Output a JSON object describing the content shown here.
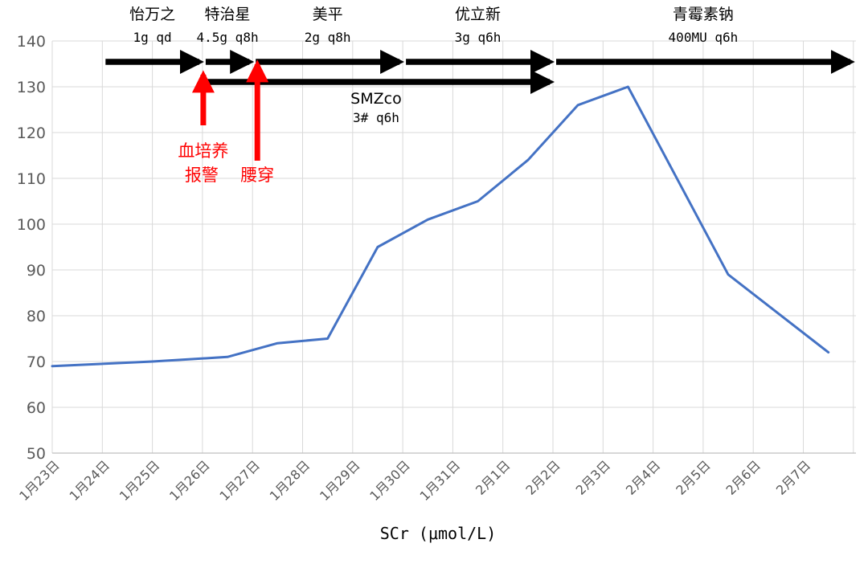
{
  "chart_data": {
    "type": "line",
    "xlabel": "SCr (μmol/L)",
    "ylim": [
      50,
      140
    ],
    "yticks": [
      50,
      60,
      70,
      80,
      90,
      100,
      110,
      120,
      130,
      140
    ],
    "categories": [
      "1月23日",
      "1月24日",
      "1月25日",
      "1月26日",
      "1月27日",
      "1月28日",
      "1月29日",
      "1月30日",
      "1月31日",
      "2月1日",
      "2月2日",
      "2月3日",
      "2月4日",
      "2月5日",
      "2月6日",
      "2月7日"
    ],
    "grid": "vertical and horizontal",
    "series": [
      {
        "color": "#4472c4",
        "points": [
          {
            "x": "1月23日",
            "y": 69
          },
          {
            "x": "1月25日",
            "y": 70
          },
          {
            "x": "1月26日 12:00",
            "y": 71
          },
          {
            "x": "1月27日 12:00",
            "y": 74
          },
          {
            "x": "1月28日 12:00",
            "y": 75
          },
          {
            "x": "1月29日 12:00",
            "y": 95
          },
          {
            "x": "1月30日 12:00",
            "y": 101
          },
          {
            "x": "1月31日 12:00",
            "y": 105
          },
          {
            "x": "2月1日 12:00",
            "y": 114
          },
          {
            "x": "2月2日 12:00",
            "y": 126
          },
          {
            "x": "2月3日 12:00",
            "y": 130
          },
          {
            "x": "2月5日 12:00",
            "y": 89
          },
          {
            "x": "2月7日 12:00",
            "y": 72
          }
        ]
      }
    ],
    "medications": [
      {
        "name": "怡万之",
        "dose": "1g qd",
        "start": "1月24日",
        "end": "1月26日"
      },
      {
        "name": "特治星",
        "dose": "4.5g q8h",
        "start": "1月26日",
        "end": "1月27日"
      },
      {
        "name": "美平",
        "dose": "2g q8h",
        "start": "1月27日",
        "end": "1月30日"
      },
      {
        "name": "优立新",
        "dose": "3g q6h",
        "start": "1月30日",
        "end": "2月2日"
      },
      {
        "name": "青霉素钠",
        "dose": "400MU q6h",
        "start": "2月2日",
        "end": "2月8日"
      },
      {
        "name": "SMZco",
        "dose": "3# q6h",
        "start": "1月26日",
        "end": "2月2日"
      }
    ],
    "events": [
      {
        "lines": [
          "血培养",
          "报警"
        ],
        "date": "1月26日"
      },
      {
        "lines": [
          "腰穿"
        ],
        "date": "1月27日"
      }
    ]
  },
  "colors": {
    "line": "#4472c4",
    "grid": "#d9d9d9",
    "arrow": "#000000",
    "event": "#ff0000"
  }
}
